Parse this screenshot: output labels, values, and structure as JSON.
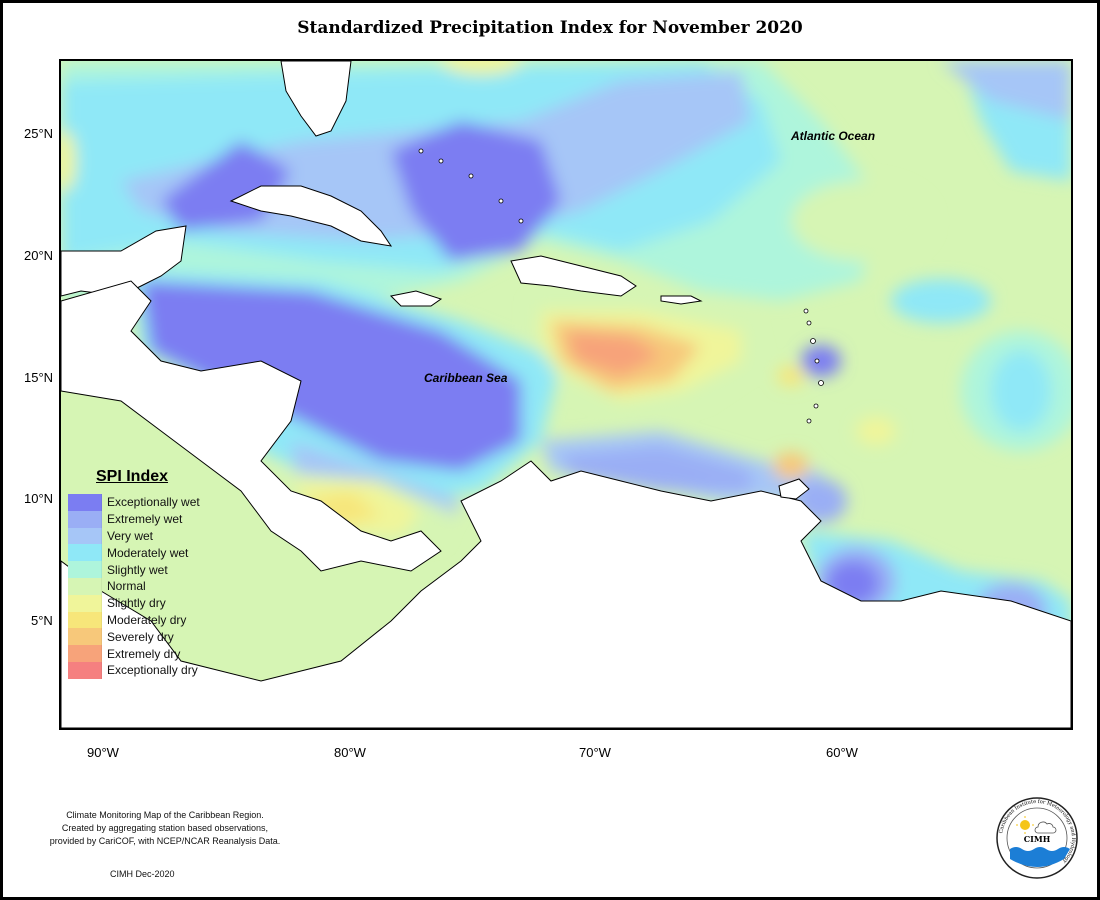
{
  "title": "Standardized Precipitation Index for November 2020",
  "map_labels": {
    "atlantic": "Atlantic Ocean",
    "caribbean": "Caribbean Sea"
  },
  "lat_labels": [
    "25°N",
    "20°N",
    "15°N",
    "10°N",
    "5°N"
  ],
  "lon_labels": [
    "90°W",
    "80°W",
    "70°W",
    "60°W"
  ],
  "legend": {
    "title": "SPI Index",
    "items": [
      {
        "label": "Exceptionally wet",
        "color": "#7b7df2"
      },
      {
        "label": "Extremely wet",
        "color": "#9aaef5"
      },
      {
        "label": "Very wet",
        "color": "#a6c6f7"
      },
      {
        "label": "Moderately wet",
        "color": "#8fe8f7"
      },
      {
        "label": "Slightly wet",
        "color": "#aef5dc"
      },
      {
        "label": "Normal",
        "color": "#d6f5b4"
      },
      {
        "label": "Slightly dry",
        "color": "#f0f59a"
      },
      {
        "label": "Moderately dry",
        "color": "#f7e67a"
      },
      {
        "label": "Severely dry",
        "color": "#f7c87a"
      },
      {
        "label": "Extremely dry",
        "color": "#f7a37a"
      },
      {
        "label": "Exceptionally dry",
        "color": "#f58080"
      }
    ]
  },
  "footer": {
    "line1": "Climate Monitoring Map of the Caribbean Region.",
    "line2": "Created by aggregating station based observations,",
    "line3": "provided by CariCOF, with NCEP/NCAR Reanalysis Data.",
    "date": "CIMH Dec-2020"
  },
  "logo": {
    "acronym": "CIMH",
    "ring_text": "Caribbean Institute for Meteorology and Hydrology"
  }
}
